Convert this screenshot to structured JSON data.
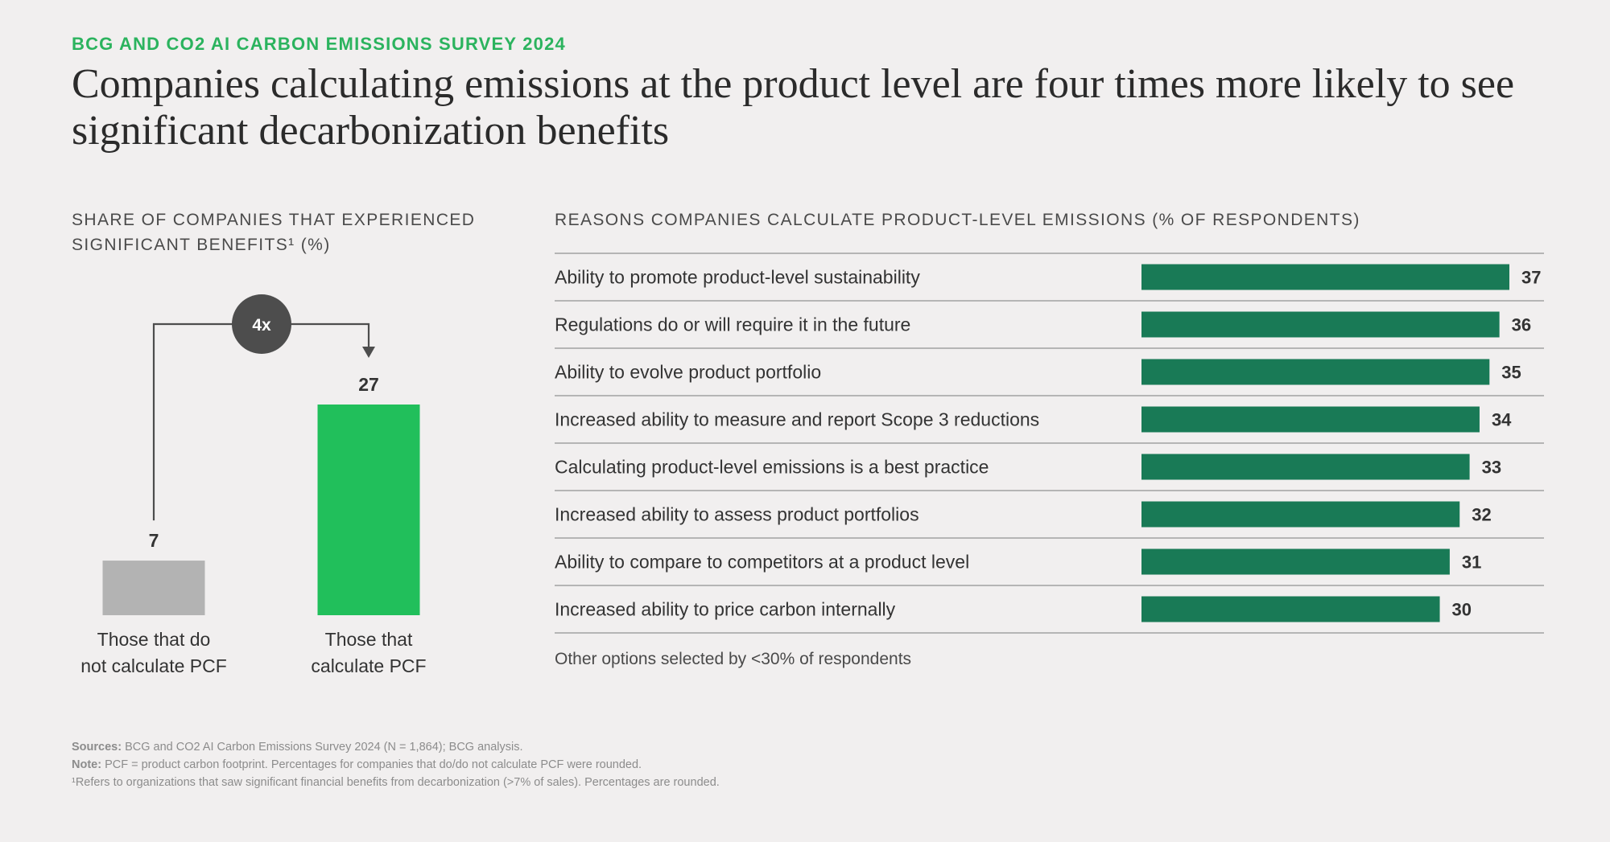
{
  "header": {
    "eyebrow": "BCG AND CO2 AI CARBON EMISSIONS SURVEY 2024",
    "title": "Companies calculating emissions at the product level are four times more likely to see significant decarbonization benefits"
  },
  "colors": {
    "bright_green": "#21bf5b",
    "dark_green": "#197a56",
    "gray_bar": "#b3b3b3",
    "circle": "#4d4d4d"
  },
  "chart_data": [
    {
      "type": "bar",
      "title": "SHARE OF COMPANIES THAT EXPERIENCED SIGNIFICANT BENEFITS¹ (%)",
      "categories": [
        "Those that do not calculate PCF",
        "Those that calculate PCF"
      ],
      "category_lines": [
        [
          "Those that do",
          "not calculate PCF"
        ],
        [
          "Those that",
          "calculate PCF"
        ]
      ],
      "values": [
        7,
        27
      ],
      "multiplier_label": "4x"
    },
    {
      "type": "bar",
      "orientation": "horizontal",
      "title": "REASONS COMPANIES CALCULATE PRODUCT-LEVEL EMISSIONS (% OF RESPONDENTS)",
      "categories": [
        "Ability to promote product-level sustainability",
        "Regulations do or will require it in the future",
        "Ability to evolve product portfolio",
        "Increased ability to measure and report Scope 3 reductions",
        "Calculating product-level emissions is a best practice",
        "Increased ability to assess product portfolios",
        "Ability to compare to competitors at a product level",
        "Increased ability to price carbon internally"
      ],
      "values": [
        37,
        36,
        35,
        34,
        33,
        32,
        31,
        30
      ],
      "note": "Other options selected by <30% of respondents"
    }
  ],
  "footnotes": {
    "sources_label": "Sources:",
    "sources_text": "BCG and CO2 AI Carbon Emissions Survey 2024 (N = 1,864); BCG analysis.",
    "note_label": "Note:",
    "note_text": "PCF = product carbon footprint. Percentages for companies that do/do not calculate PCF were rounded.",
    "footnote1": "¹Refers to organizations that saw significant financial benefits from decarbonization (>7% of sales). Percentages are rounded."
  }
}
